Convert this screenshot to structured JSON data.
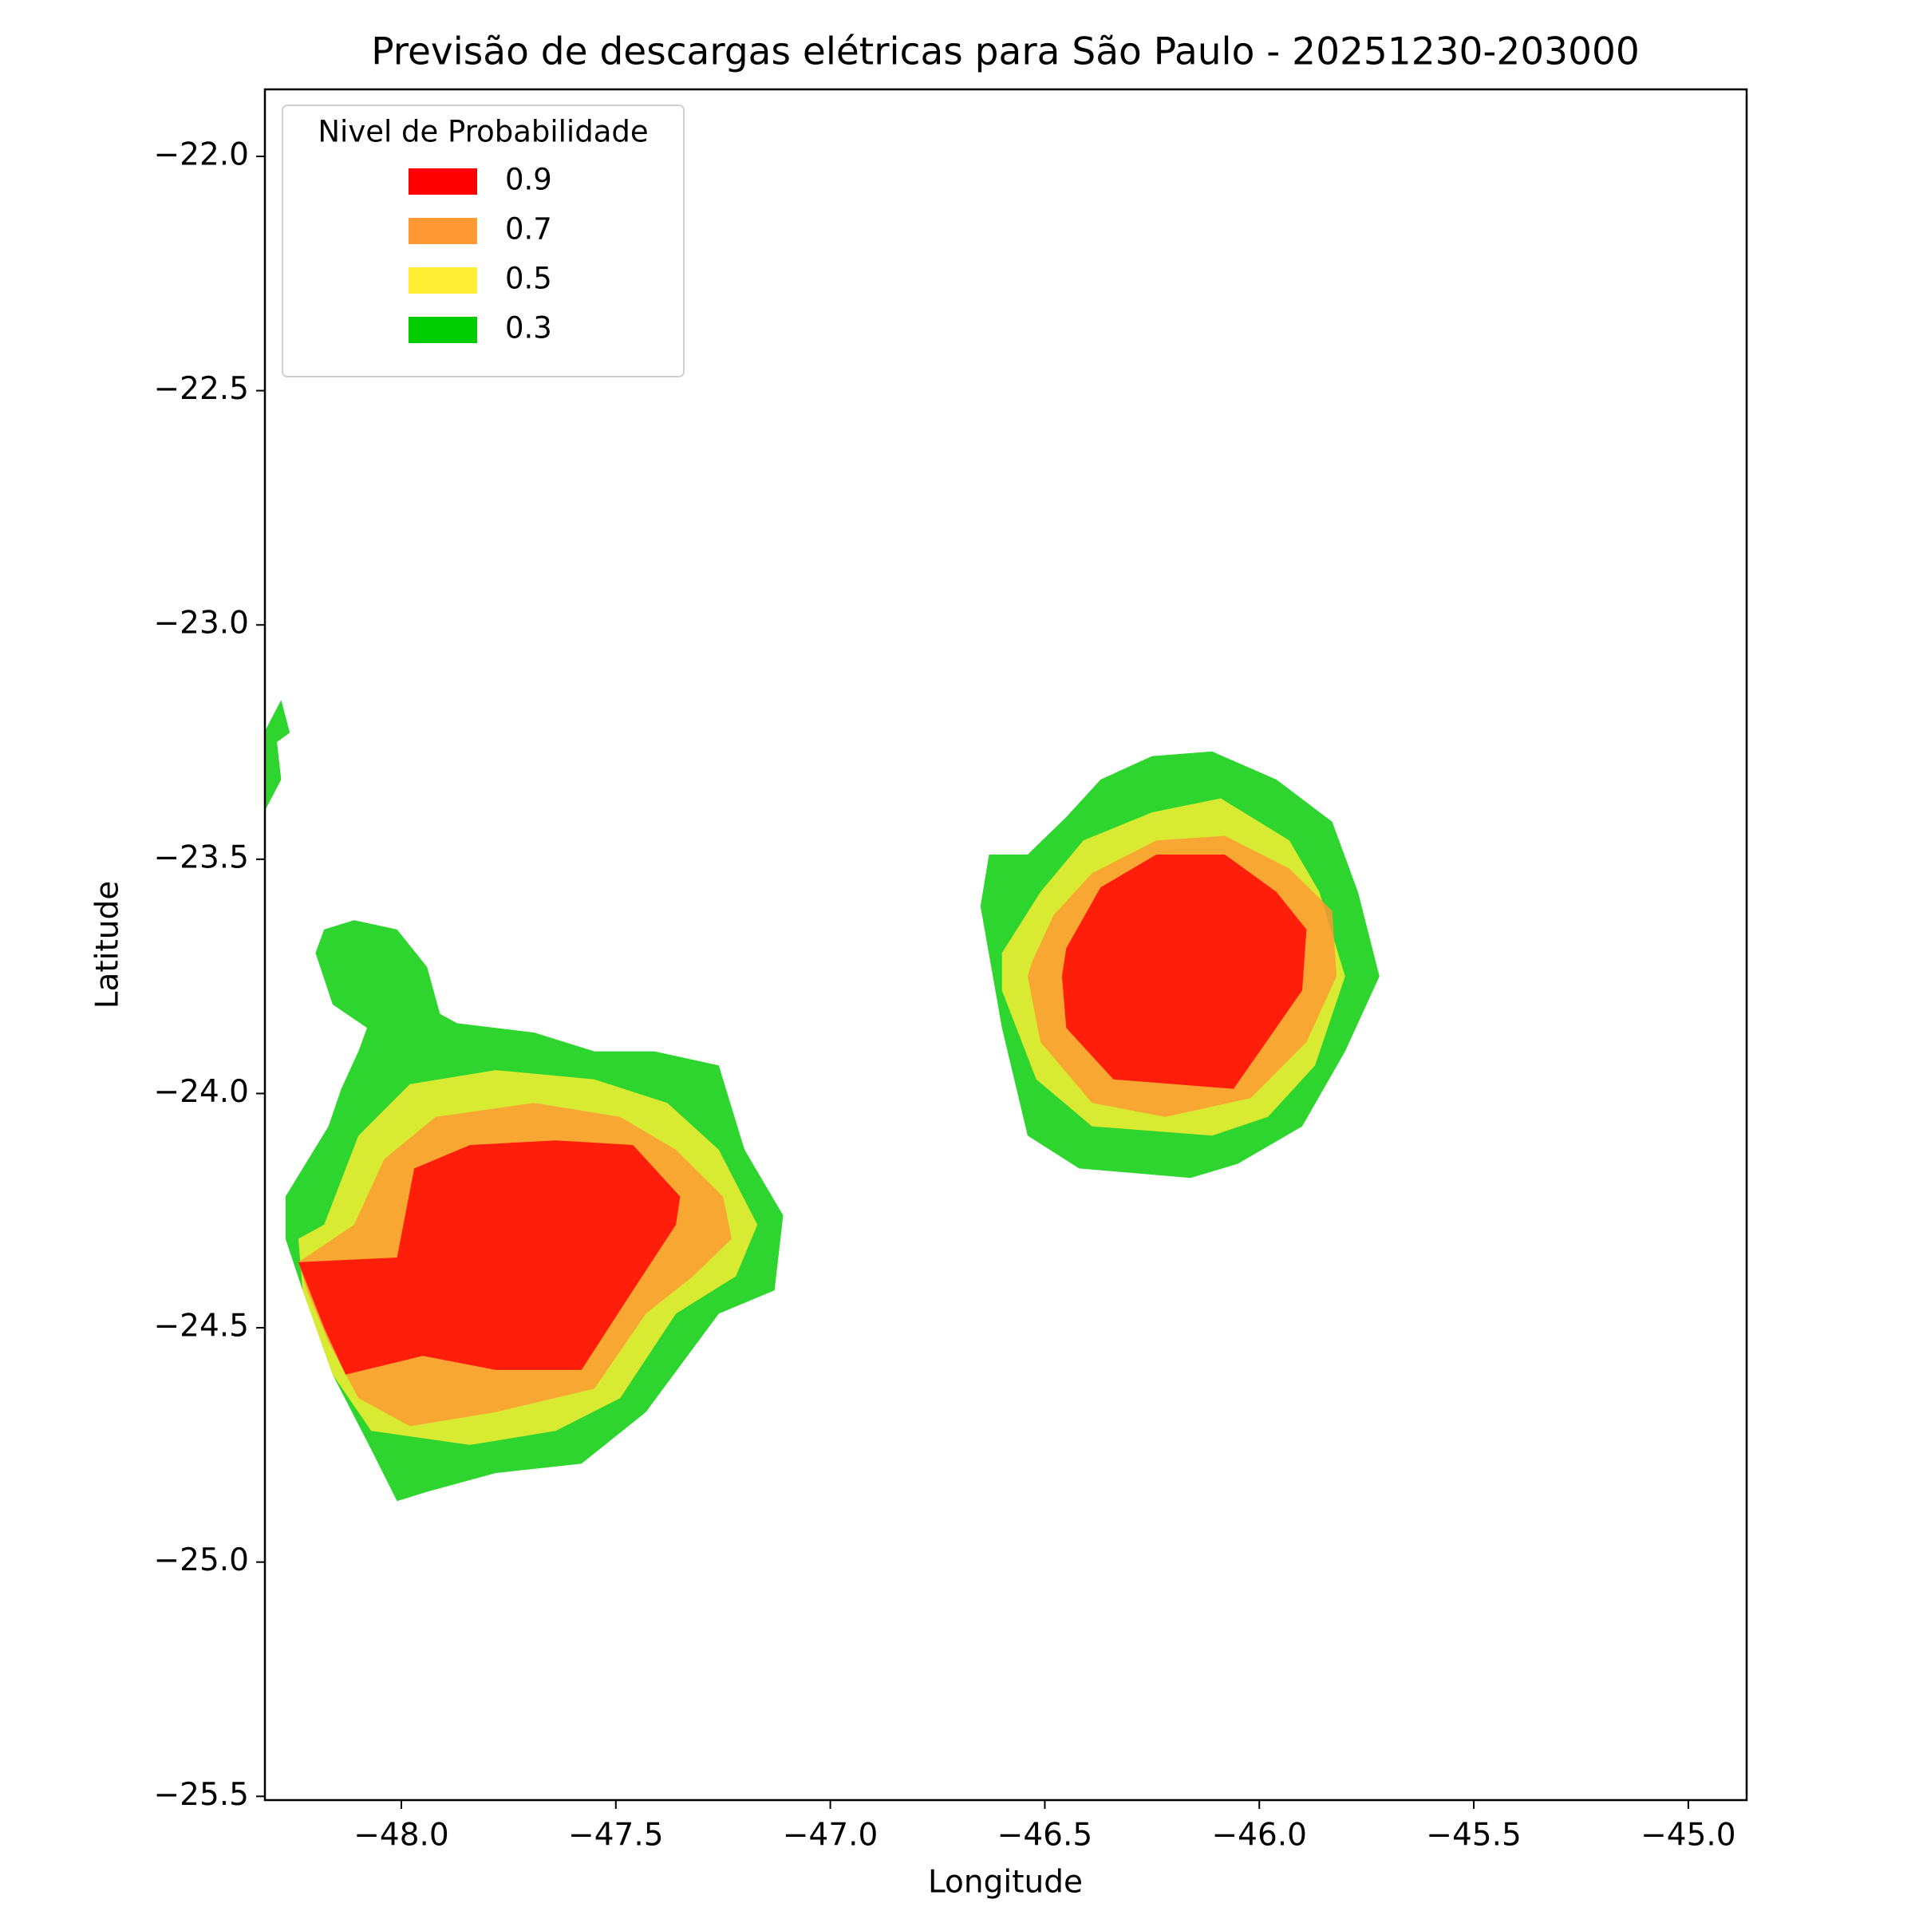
{
  "chart_data": {
    "type": "contourf",
    "title": "Previsão de descargas elétricas para São Paulo - 20251230-203000",
    "xlabel": "Longitude",
    "ylabel": "Latitude",
    "xlim": [
      -48.318,
      -44.864
    ],
    "ylim": [
      -25.508,
      -21.857
    ],
    "xticks": [
      {
        "value": -48.0,
        "label": "−48.0"
      },
      {
        "value": -47.5,
        "label": "−47.5"
      },
      {
        "value": -47.0,
        "label": "−47.0"
      },
      {
        "value": -46.5,
        "label": "−46.5"
      },
      {
        "value": -46.0,
        "label": "−46.0"
      },
      {
        "value": -45.5,
        "label": "−45.5"
      },
      {
        "value": -45.0,
        "label": "−45.0"
      }
    ],
    "yticks": [
      {
        "value": -22.0,
        "label": "−22.0"
      },
      {
        "value": -22.5,
        "label": "−22.5"
      },
      {
        "value": -23.0,
        "label": "−23.0"
      },
      {
        "value": -23.5,
        "label": "−23.5"
      },
      {
        "value": -24.0,
        "label": "−24.0"
      },
      {
        "value": -24.5,
        "label": "−24.5"
      },
      {
        "value": -25.0,
        "label": "−25.0"
      },
      {
        "value": -25.5,
        "label": "−25.5"
      }
    ],
    "grid": false,
    "fill_alpha": 0.82,
    "legend": {
      "title": "Nivel de Probabilidade",
      "loc": "upper left"
    },
    "series": [
      {
        "name": "0.9",
        "color": "#ff0000",
        "polygons": [
          [
            [
              -46.45,
              -23.69
            ],
            [
              -46.37,
              -23.56
            ],
            [
              -46.24,
              -23.49
            ],
            [
              -46.08,
              -23.49
            ],
            [
              -45.96,
              -23.57
            ],
            [
              -45.89,
              -23.65
            ],
            [
              -45.9,
              -23.78
            ],
            [
              -46.06,
              -23.99
            ],
            [
              -46.34,
              -23.97
            ],
            [
              -46.45,
              -23.86
            ],
            [
              -46.46,
              -23.75
            ]
          ],
          [
            [
              -48.24,
              -24.36
            ],
            [
              -48.01,
              -24.35
            ],
            [
              -47.97,
              -24.16
            ],
            [
              -47.84,
              -24.11
            ],
            [
              -47.64,
              -24.1
            ],
            [
              -47.46,
              -24.11
            ],
            [
              -47.35,
              -24.22
            ],
            [
              -47.36,
              -24.28
            ],
            [
              -47.46,
              -24.42
            ],
            [
              -47.58,
              -24.59
            ],
            [
              -47.78,
              -24.59
            ],
            [
              -47.95,
              -24.56
            ],
            [
              -48.13,
              -24.6
            ],
            [
              -48.18,
              -24.5
            ]
          ]
        ]
      },
      {
        "name": "0.7",
        "color": "#ff9933",
        "polygons": [
          [
            [
              -46.53,
              -23.72
            ],
            [
              -46.48,
              -23.62
            ],
            [
              -46.39,
              -23.53
            ],
            [
              -46.24,
              -23.46
            ],
            [
              -46.08,
              -23.45
            ],
            [
              -45.93,
              -23.52
            ],
            [
              -45.83,
              -23.61
            ],
            [
              -45.82,
              -23.75
            ],
            [
              -45.89,
              -23.89
            ],
            [
              -46.02,
              -24.01
            ],
            [
              -46.22,
              -24.05
            ],
            [
              -46.39,
              -24.02
            ],
            [
              -46.51,
              -23.89
            ],
            [
              -46.54,
              -23.75
            ]
          ],
          [
            [
              -48.24,
              -24.36
            ],
            [
              -48.11,
              -24.28
            ],
            [
              -48.04,
              -24.14
            ],
            [
              -47.92,
              -24.05
            ],
            [
              -47.69,
              -24.02
            ],
            [
              -47.49,
              -24.05
            ],
            [
              -47.36,
              -24.12
            ],
            [
              -47.25,
              -24.22
            ],
            [
              -47.23,
              -24.31
            ],
            [
              -47.32,
              -24.39
            ],
            [
              -47.43,
              -24.47
            ],
            [
              -47.55,
              -24.63
            ],
            [
              -47.78,
              -24.68
            ],
            [
              -47.98,
              -24.71
            ],
            [
              -48.1,
              -24.65
            ],
            [
              -48.17,
              -24.53
            ],
            [
              -48.22,
              -24.42
            ]
          ]
        ]
      },
      {
        "name": "0.5",
        "color": "#ffee33",
        "polygons": [
          [
            [
              -46.6,
              -23.7
            ],
            [
              -46.51,
              -23.57
            ],
            [
              -46.41,
              -23.46
            ],
            [
              -46.25,
              -23.4
            ],
            [
              -46.09,
              -23.37
            ],
            [
              -45.93,
              -23.46
            ],
            [
              -45.86,
              -23.57
            ],
            [
              -45.8,
              -23.75
            ],
            [
              -45.87,
              -23.94
            ],
            [
              -45.98,
              -24.05
            ],
            [
              -46.11,
              -24.09
            ],
            [
              -46.39,
              -24.07
            ],
            [
              -46.52,
              -23.97
            ],
            [
              -46.6,
              -23.78
            ]
          ],
          [
            [
              -48.24,
              -24.31
            ],
            [
              -48.18,
              -24.28
            ],
            [
              -48.1,
              -24.09
            ],
            [
              -47.98,
              -23.98
            ],
            [
              -47.78,
              -23.95
            ],
            [
              -47.55,
              -23.97
            ],
            [
              -47.38,
              -24.02
            ],
            [
              -47.26,
              -24.12
            ],
            [
              -47.17,
              -24.28
            ],
            [
              -47.22,
              -24.39
            ],
            [
              -47.36,
              -24.47
            ],
            [
              -47.49,
              -24.65
            ],
            [
              -47.64,
              -24.72
            ],
            [
              -47.84,
              -24.75
            ],
            [
              -48.07,
              -24.72
            ],
            [
              -48.16,
              -24.6
            ],
            [
              -48.23,
              -24.42
            ]
          ]
        ]
      },
      {
        "name": "0.3",
        "color": "#00cc00",
        "polygons": [
          [
            [
              -46.65,
              -23.6
            ],
            [
              -46.63,
              -23.49
            ],
            [
              -46.54,
              -23.49
            ],
            [
              -46.45,
              -23.41
            ],
            [
              -46.37,
              -23.33
            ],
            [
              -46.25,
              -23.28
            ],
            [
              -46.11,
              -23.27
            ],
            [
              -45.96,
              -23.33
            ],
            [
              -45.83,
              -23.42
            ],
            [
              -45.77,
              -23.57
            ],
            [
              -45.72,
              -23.75
            ],
            [
              -45.8,
              -23.91
            ],
            [
              -45.9,
              -24.07
            ],
            [
              -46.05,
              -24.15
            ],
            [
              -46.16,
              -24.18
            ],
            [
              -46.42,
              -24.16
            ],
            [
              -46.54,
              -24.09
            ],
            [
              -46.6,
              -23.86
            ]
          ],
          [
            [
              -48.27,
              -24.22
            ],
            [
              -48.17,
              -24.07
            ],
            [
              -48.14,
              -23.99
            ],
            [
              -48.1,
              -23.91
            ],
            [
              -48.08,
              -23.86
            ],
            [
              -48.16,
              -23.81
            ],
            [
              -48.2,
              -23.7
            ],
            [
              -48.18,
              -23.65
            ],
            [
              -48.11,
              -23.63
            ],
            [
              -48.01,
              -23.65
            ],
            [
              -47.94,
              -23.73
            ],
            [
              -47.91,
              -23.83
            ],
            [
              -47.87,
              -23.85
            ],
            [
              -47.69,
              -23.87
            ],
            [
              -47.55,
              -23.91
            ],
            [
              -47.41,
              -23.91
            ],
            [
              -47.26,
              -23.94
            ],
            [
              -47.2,
              -24.12
            ],
            [
              -47.11,
              -24.26
            ],
            [
              -47.13,
              -24.42
            ],
            [
              -47.26,
              -24.47
            ],
            [
              -47.43,
              -24.68
            ],
            [
              -47.58,
              -24.79
            ],
            [
              -47.78,
              -24.81
            ],
            [
              -47.94,
              -24.85
            ],
            [
              -48.01,
              -24.87
            ],
            [
              -48.07,
              -24.76
            ],
            [
              -48.16,
              -24.6
            ],
            [
              -48.23,
              -24.42
            ],
            [
              -48.27,
              -24.31
            ]
          ],
          [
            [
              -48.32,
              -23.4
            ],
            [
              -48.28,
              -23.33
            ],
            [
              -48.29,
              -23.25
            ],
            [
              -48.26,
              -23.23
            ],
            [
              -48.28,
              -23.16
            ],
            [
              -48.32,
              -23.23
            ]
          ]
        ]
      }
    ]
  }
}
